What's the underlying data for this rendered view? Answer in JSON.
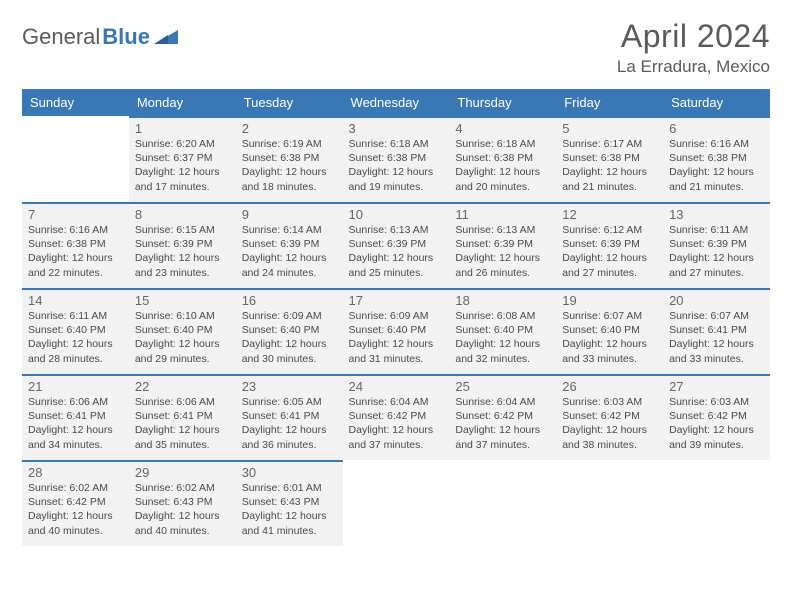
{
  "meta": {
    "brand_left": "General",
    "brand_right": "Blue",
    "brand_color": "#3a78b5",
    "title": "April 2024",
    "location": "La Erradura, Mexico",
    "title_color": "#5a5a5a",
    "header_bg": "#3a78b5",
    "header_fg": "#ffffff",
    "cell_bg": "#f2f2f2",
    "cell_border": "#3a78b5",
    "text_color": "#4a4a4a",
    "page_bg": "#ffffff"
  },
  "weekdays": [
    "Sunday",
    "Monday",
    "Tuesday",
    "Wednesday",
    "Thursday",
    "Friday",
    "Saturday"
  ],
  "weeks": [
    [
      null,
      {
        "n": "1",
        "sunrise": "Sunrise: 6:20 AM",
        "sunset": "Sunset: 6:37 PM",
        "d1": "Daylight: 12 hours",
        "d2": "and 17 minutes."
      },
      {
        "n": "2",
        "sunrise": "Sunrise: 6:19 AM",
        "sunset": "Sunset: 6:38 PM",
        "d1": "Daylight: 12 hours",
        "d2": "and 18 minutes."
      },
      {
        "n": "3",
        "sunrise": "Sunrise: 6:18 AM",
        "sunset": "Sunset: 6:38 PM",
        "d1": "Daylight: 12 hours",
        "d2": "and 19 minutes."
      },
      {
        "n": "4",
        "sunrise": "Sunrise: 6:18 AM",
        "sunset": "Sunset: 6:38 PM",
        "d1": "Daylight: 12 hours",
        "d2": "and 20 minutes."
      },
      {
        "n": "5",
        "sunrise": "Sunrise: 6:17 AM",
        "sunset": "Sunset: 6:38 PM",
        "d1": "Daylight: 12 hours",
        "d2": "and 21 minutes."
      },
      {
        "n": "6",
        "sunrise": "Sunrise: 6:16 AM",
        "sunset": "Sunset: 6:38 PM",
        "d1": "Daylight: 12 hours",
        "d2": "and 21 minutes."
      }
    ],
    [
      {
        "n": "7",
        "sunrise": "Sunrise: 6:16 AM",
        "sunset": "Sunset: 6:38 PM",
        "d1": "Daylight: 12 hours",
        "d2": "and 22 minutes."
      },
      {
        "n": "8",
        "sunrise": "Sunrise: 6:15 AM",
        "sunset": "Sunset: 6:39 PM",
        "d1": "Daylight: 12 hours",
        "d2": "and 23 minutes."
      },
      {
        "n": "9",
        "sunrise": "Sunrise: 6:14 AM",
        "sunset": "Sunset: 6:39 PM",
        "d1": "Daylight: 12 hours",
        "d2": "and 24 minutes."
      },
      {
        "n": "10",
        "sunrise": "Sunrise: 6:13 AM",
        "sunset": "Sunset: 6:39 PM",
        "d1": "Daylight: 12 hours",
        "d2": "and 25 minutes."
      },
      {
        "n": "11",
        "sunrise": "Sunrise: 6:13 AM",
        "sunset": "Sunset: 6:39 PM",
        "d1": "Daylight: 12 hours",
        "d2": "and 26 minutes."
      },
      {
        "n": "12",
        "sunrise": "Sunrise: 6:12 AM",
        "sunset": "Sunset: 6:39 PM",
        "d1": "Daylight: 12 hours",
        "d2": "and 27 minutes."
      },
      {
        "n": "13",
        "sunrise": "Sunrise: 6:11 AM",
        "sunset": "Sunset: 6:39 PM",
        "d1": "Daylight: 12 hours",
        "d2": "and 27 minutes."
      }
    ],
    [
      {
        "n": "14",
        "sunrise": "Sunrise: 6:11 AM",
        "sunset": "Sunset: 6:40 PM",
        "d1": "Daylight: 12 hours",
        "d2": "and 28 minutes."
      },
      {
        "n": "15",
        "sunrise": "Sunrise: 6:10 AM",
        "sunset": "Sunset: 6:40 PM",
        "d1": "Daylight: 12 hours",
        "d2": "and 29 minutes."
      },
      {
        "n": "16",
        "sunrise": "Sunrise: 6:09 AM",
        "sunset": "Sunset: 6:40 PM",
        "d1": "Daylight: 12 hours",
        "d2": "and 30 minutes."
      },
      {
        "n": "17",
        "sunrise": "Sunrise: 6:09 AM",
        "sunset": "Sunset: 6:40 PM",
        "d1": "Daylight: 12 hours",
        "d2": "and 31 minutes."
      },
      {
        "n": "18",
        "sunrise": "Sunrise: 6:08 AM",
        "sunset": "Sunset: 6:40 PM",
        "d1": "Daylight: 12 hours",
        "d2": "and 32 minutes."
      },
      {
        "n": "19",
        "sunrise": "Sunrise: 6:07 AM",
        "sunset": "Sunset: 6:40 PM",
        "d1": "Daylight: 12 hours",
        "d2": "and 33 minutes."
      },
      {
        "n": "20",
        "sunrise": "Sunrise: 6:07 AM",
        "sunset": "Sunset: 6:41 PM",
        "d1": "Daylight: 12 hours",
        "d2": "and 33 minutes."
      }
    ],
    [
      {
        "n": "21",
        "sunrise": "Sunrise: 6:06 AM",
        "sunset": "Sunset: 6:41 PM",
        "d1": "Daylight: 12 hours",
        "d2": "and 34 minutes."
      },
      {
        "n": "22",
        "sunrise": "Sunrise: 6:06 AM",
        "sunset": "Sunset: 6:41 PM",
        "d1": "Daylight: 12 hours",
        "d2": "and 35 minutes."
      },
      {
        "n": "23",
        "sunrise": "Sunrise: 6:05 AM",
        "sunset": "Sunset: 6:41 PM",
        "d1": "Daylight: 12 hours",
        "d2": "and 36 minutes."
      },
      {
        "n": "24",
        "sunrise": "Sunrise: 6:04 AM",
        "sunset": "Sunset: 6:42 PM",
        "d1": "Daylight: 12 hours",
        "d2": "and 37 minutes."
      },
      {
        "n": "25",
        "sunrise": "Sunrise: 6:04 AM",
        "sunset": "Sunset: 6:42 PM",
        "d1": "Daylight: 12 hours",
        "d2": "and 37 minutes."
      },
      {
        "n": "26",
        "sunrise": "Sunrise: 6:03 AM",
        "sunset": "Sunset: 6:42 PM",
        "d1": "Daylight: 12 hours",
        "d2": "and 38 minutes."
      },
      {
        "n": "27",
        "sunrise": "Sunrise: 6:03 AM",
        "sunset": "Sunset: 6:42 PM",
        "d1": "Daylight: 12 hours",
        "d2": "and 39 minutes."
      }
    ],
    [
      {
        "n": "28",
        "sunrise": "Sunrise: 6:02 AM",
        "sunset": "Sunset: 6:42 PM",
        "d1": "Daylight: 12 hours",
        "d2": "and 40 minutes."
      },
      {
        "n": "29",
        "sunrise": "Sunrise: 6:02 AM",
        "sunset": "Sunset: 6:43 PM",
        "d1": "Daylight: 12 hours",
        "d2": "and 40 minutes."
      },
      {
        "n": "30",
        "sunrise": "Sunrise: 6:01 AM",
        "sunset": "Sunset: 6:43 PM",
        "d1": "Daylight: 12 hours",
        "d2": "and 41 minutes."
      },
      null,
      null,
      null,
      null
    ]
  ]
}
